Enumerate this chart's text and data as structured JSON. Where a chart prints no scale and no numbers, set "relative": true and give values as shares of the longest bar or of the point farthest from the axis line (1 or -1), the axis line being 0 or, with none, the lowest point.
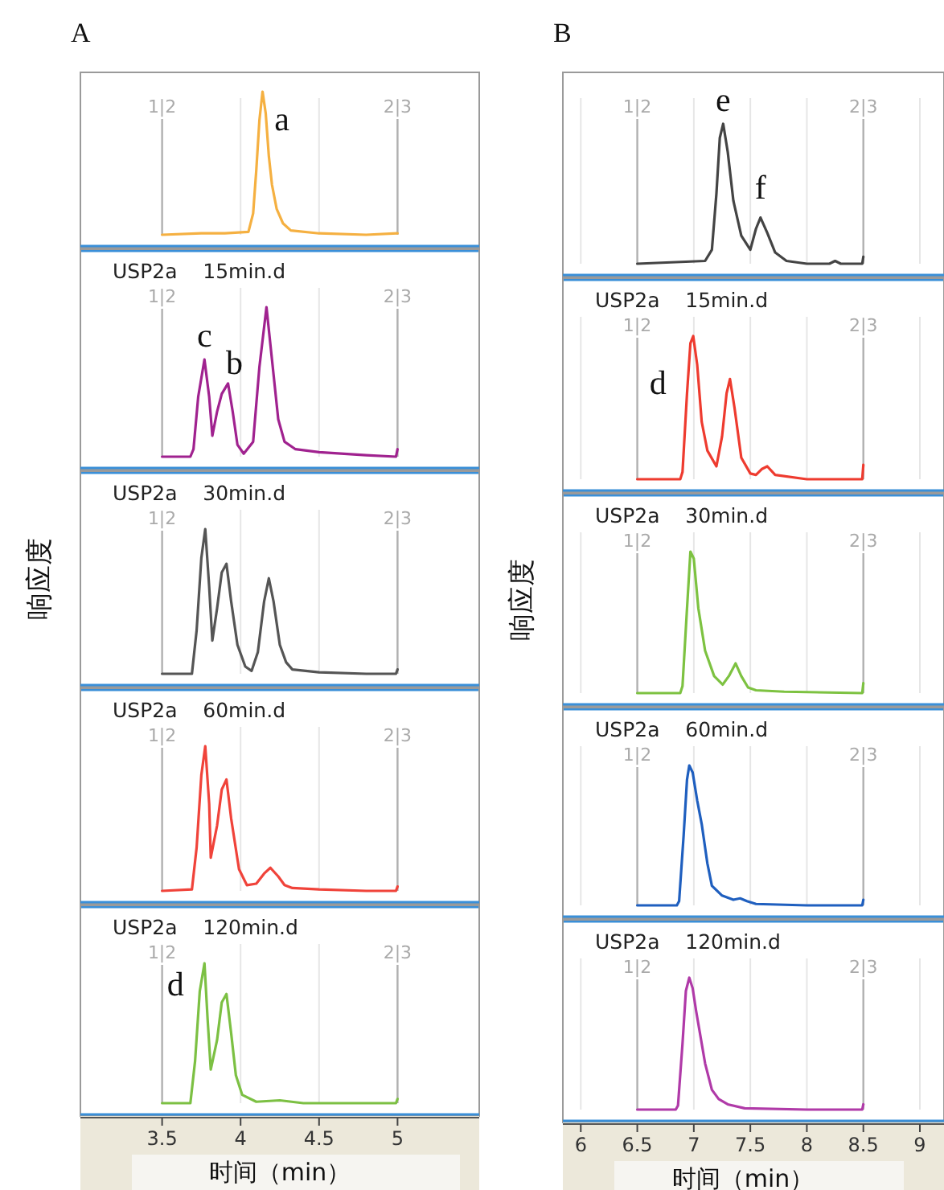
{
  "chart_data": [
    {
      "type": "line",
      "relative": true,
      "title": "A",
      "xlim": [
        3.0,
        5.5
      ],
      "xticks": [
        3.5,
        4,
        4.5,
        5
      ],
      "tick_labels": false,
      "grid": "x",
      "series": [
        {
          "color": "#f5b041",
          "x": [
            3.5,
            3.75,
            3.9,
            4.05,
            4.08,
            4.1,
            4.12,
            4.14,
            4.16,
            4.18,
            4.2,
            4.23,
            4.27,
            4.32,
            4.5,
            4.8,
            5.0
          ],
          "values": [
            0.0,
            0.01,
            0.01,
            0.02,
            0.15,
            0.45,
            0.8,
            1.0,
            0.85,
            0.55,
            0.35,
            0.18,
            0.08,
            0.03,
            0.01,
            0.0,
            0.01
          ]
        }
      ],
      "annotations": [
        "1|2",
        "2|3",
        {
          "text": "a",
          "x": 4.14,
          "y": 1.0
        }
      ]
    },
    {
      "type": "line",
      "relative": true,
      "subtitle": "USP2a    15min.d",
      "xlim": [
        3.0,
        5.5
      ],
      "xticks": [
        3.5,
        4,
        4.5,
        5
      ],
      "tick_labels": false,
      "grid": "x",
      "series": [
        {
          "color": "#a0228f",
          "x": [
            3.5,
            3.68,
            3.7,
            3.73,
            3.77,
            3.8,
            3.82,
            3.85,
            3.88,
            3.92,
            3.95,
            3.98,
            4.02,
            4.08,
            4.12,
            4.165,
            4.2,
            4.24,
            4.28,
            4.35,
            4.5,
            4.8,
            4.99,
            5.0
          ],
          "values": [
            0.0,
            0.0,
            0.05,
            0.4,
            0.65,
            0.4,
            0.14,
            0.3,
            0.42,
            0.49,
            0.3,
            0.08,
            0.02,
            0.1,
            0.6,
            1.0,
            0.65,
            0.25,
            0.1,
            0.05,
            0.03,
            0.01,
            0.0,
            0.05
          ]
        }
      ],
      "annotations": [
        "1|2",
        "2|3",
        {
          "text": "c",
          "x": 3.77,
          "y": 0.65
        },
        {
          "text": "b",
          "x": 3.92,
          "y": 0.49
        }
      ]
    },
    {
      "type": "line",
      "relative": true,
      "subtitle": "USP2a    30min.d",
      "ylabel": "响应度",
      "xlim": [
        3.0,
        5.5
      ],
      "xticks": [
        3.5,
        4,
        4.5,
        5
      ],
      "tick_labels": false,
      "grid": "x",
      "series": [
        {
          "color": "#555555",
          "x": [
            3.5,
            3.69,
            3.72,
            3.75,
            3.775,
            3.8,
            3.82,
            3.85,
            3.88,
            3.91,
            3.94,
            3.98,
            4.03,
            4.07,
            4.11,
            4.15,
            4.18,
            4.21,
            4.25,
            4.29,
            4.33,
            4.5,
            4.8,
            4.99,
            5.0
          ],
          "values": [
            0.0,
            0.0,
            0.3,
            0.8,
            1.0,
            0.6,
            0.23,
            0.45,
            0.7,
            0.76,
            0.5,
            0.2,
            0.05,
            0.02,
            0.15,
            0.5,
            0.66,
            0.5,
            0.2,
            0.08,
            0.03,
            0.01,
            0.0,
            0.0,
            0.03
          ]
        }
      ],
      "annotations": [
        "1|2",
        "2|3"
      ]
    },
    {
      "type": "line",
      "relative": true,
      "subtitle": "USP2a    60min.d",
      "xlim": [
        3.0,
        5.5
      ],
      "xticks": [
        3.5,
        4,
        4.5,
        5
      ],
      "tick_labels": false,
      "grid": "x",
      "series": [
        {
          "color": "#f0433a",
          "x": [
            3.5,
            3.69,
            3.72,
            3.75,
            3.775,
            3.8,
            3.81,
            3.85,
            3.88,
            3.91,
            3.94,
            3.99,
            4.04,
            4.1,
            4.15,
            4.19,
            4.24,
            4.28,
            4.33,
            4.5,
            4.8,
            4.99,
            5.0
          ],
          "values": [
            0.0,
            0.01,
            0.3,
            0.8,
            1.0,
            0.6,
            0.23,
            0.45,
            0.7,
            0.77,
            0.5,
            0.15,
            0.04,
            0.05,
            0.12,
            0.16,
            0.1,
            0.04,
            0.02,
            0.01,
            0.0,
            0.0,
            0.03
          ]
        }
      ],
      "annotations": [
        "1|2",
        "2|3"
      ]
    },
    {
      "type": "line",
      "relative": true,
      "subtitle": "USP2a    120min.d",
      "xlabel": "时间（min）",
      "xlim": [
        3.0,
        5.5
      ],
      "xticks": [
        3.5,
        4,
        4.5,
        5
      ],
      "tick_labels": "x",
      "grid": "x",
      "series": [
        {
          "color": "#7cc043",
          "x": [
            3.5,
            3.68,
            3.71,
            3.74,
            3.77,
            3.79,
            3.81,
            3.85,
            3.88,
            3.91,
            3.94,
            3.97,
            4.01,
            4.1,
            4.25,
            4.4,
            4.8,
            4.99,
            5.0
          ],
          "values": [
            0.0,
            0.0,
            0.3,
            0.8,
            1.0,
            0.6,
            0.24,
            0.45,
            0.72,
            0.78,
            0.5,
            0.2,
            0.06,
            0.01,
            0.02,
            0.0,
            0.0,
            0.0,
            0.03
          ]
        }
      ],
      "annotations": [
        "1|2",
        "2|3",
        {
          "text": "d",
          "x": 3.77,
          "y": 1.0
        }
      ]
    },
    {
      "type": "line",
      "relative": true,
      "title": "B",
      "xlim": [
        5.87,
        9.0
      ],
      "xticks": [
        6,
        6.5,
        7,
        7.5,
        8,
        8.5,
        9
      ],
      "tick_labels": false,
      "grid": "x",
      "series": [
        {
          "color": "#444444",
          "x": [
            6.5,
            6.8,
            7.1,
            7.16,
            7.2,
            7.23,
            7.26,
            7.3,
            7.35,
            7.42,
            7.5,
            7.55,
            7.59,
            7.65,
            7.72,
            7.82,
            8.0,
            8.2,
            8.25,
            8.3,
            8.49,
            8.5
          ],
          "values": [
            0.0,
            0.01,
            0.02,
            0.1,
            0.5,
            0.9,
            1.0,
            0.8,
            0.45,
            0.2,
            0.1,
            0.25,
            0.33,
            0.22,
            0.08,
            0.02,
            0.0,
            0.0,
            0.02,
            0.0,
            0.0,
            0.05
          ]
        }
      ],
      "annotations": [
        "1|2",
        "2|3",
        {
          "text": "e",
          "x": 7.26,
          "y": 1.0
        },
        {
          "text": "f",
          "x": 7.59,
          "y": 0.33
        }
      ]
    },
    {
      "type": "line",
      "relative": true,
      "subtitle": "USP2a    15min.d",
      "xlim": [
        5.87,
        9.0
      ],
      "xticks": [
        6,
        6.5,
        7,
        7.5,
        8,
        8.5,
        9
      ],
      "tick_labels": false,
      "grid": "x",
      "series": [
        {
          "color": "#ee3b2f",
          "x": [
            6.5,
            6.88,
            6.9,
            6.94,
            6.97,
            6.995,
            7.03,
            7.07,
            7.12,
            7.2,
            7.25,
            7.29,
            7.32,
            7.36,
            7.42,
            7.5,
            7.55,
            7.6,
            7.65,
            7.72,
            8.0,
            8.49,
            8.5
          ],
          "values": [
            0.0,
            0.0,
            0.05,
            0.6,
            0.95,
            1.0,
            0.8,
            0.4,
            0.2,
            0.09,
            0.3,
            0.6,
            0.7,
            0.5,
            0.15,
            0.04,
            0.03,
            0.07,
            0.09,
            0.03,
            0.0,
            0.0,
            0.1
          ]
        }
      ],
      "annotations": [
        "1|2",
        "2|3",
        {
          "text": "d",
          "x": 6.995,
          "y": 1.0
        }
      ]
    },
    {
      "type": "line",
      "relative": true,
      "subtitle": "USP2a    30min.d",
      "ylabel": "响应度",
      "xlim": [
        5.87,
        9.0
      ],
      "xticks": [
        6,
        6.5,
        7,
        7.5,
        8,
        8.5,
        9
      ],
      "tick_labels": false,
      "grid": "x",
      "series": [
        {
          "color": "#7dc241",
          "x": [
            6.5,
            6.88,
            6.9,
            6.94,
            6.97,
            7.0,
            7.04,
            7.1,
            7.18,
            7.255,
            7.31,
            7.37,
            7.42,
            7.48,
            7.55,
            7.8,
            8.49,
            8.5
          ],
          "values": [
            0.0,
            0.0,
            0.05,
            0.6,
            1.0,
            0.95,
            0.6,
            0.3,
            0.12,
            0.06,
            0.12,
            0.21,
            0.12,
            0.04,
            0.02,
            0.01,
            0.0,
            0.07
          ]
        }
      ],
      "annotations": [
        "1|2",
        "2|3"
      ]
    },
    {
      "type": "line",
      "relative": true,
      "subtitle": "USP2a    60min.d",
      "xlim": [
        5.87,
        9.0
      ],
      "xticks": [
        6,
        6.5,
        7,
        7.5,
        8,
        8.5,
        9
      ],
      "tick_labels": false,
      "grid": "x",
      "series": [
        {
          "color": "#1f5fbf",
          "x": [
            6.5,
            6.85,
            6.87,
            6.91,
            6.94,
            6.96,
            6.99,
            7.03,
            7.07,
            7.12,
            7.16,
            7.25,
            7.35,
            7.41,
            7.47,
            7.55,
            8.0,
            8.49,
            8.5
          ],
          "values": [
            0.0,
            0.0,
            0.03,
            0.5,
            0.9,
            1.0,
            0.95,
            0.75,
            0.58,
            0.3,
            0.14,
            0.07,
            0.04,
            0.05,
            0.03,
            0.01,
            0.0,
            0.0,
            0.04
          ]
        }
      ],
      "annotations": [
        "1|2",
        "2|3"
      ]
    },
    {
      "type": "line",
      "relative": true,
      "subtitle": "USP2a    120min.d",
      "xlabel": "时间（min）",
      "xlim": [
        5.87,
        9.0
      ],
      "xticks": [
        6,
        6.5,
        7,
        7.5,
        8,
        8.5,
        9
      ],
      "tick_labels": "x",
      "grid": "x",
      "series": [
        {
          "color": "#b03aa8",
          "x": [
            6.5,
            6.84,
            6.86,
            6.9,
            6.93,
            6.96,
            6.99,
            7.02,
            7.05,
            7.1,
            7.16,
            7.22,
            7.3,
            7.45,
            8.0,
            8.49,
            8.5
          ],
          "values": [
            0.0,
            0.0,
            0.03,
            0.5,
            0.9,
            1.0,
            0.92,
            0.75,
            0.6,
            0.35,
            0.15,
            0.08,
            0.04,
            0.01,
            0.0,
            0.0,
            0.04
          ]
        }
      ],
      "annotations": [
        "1|2",
        "2|3"
      ]
    }
  ]
}
